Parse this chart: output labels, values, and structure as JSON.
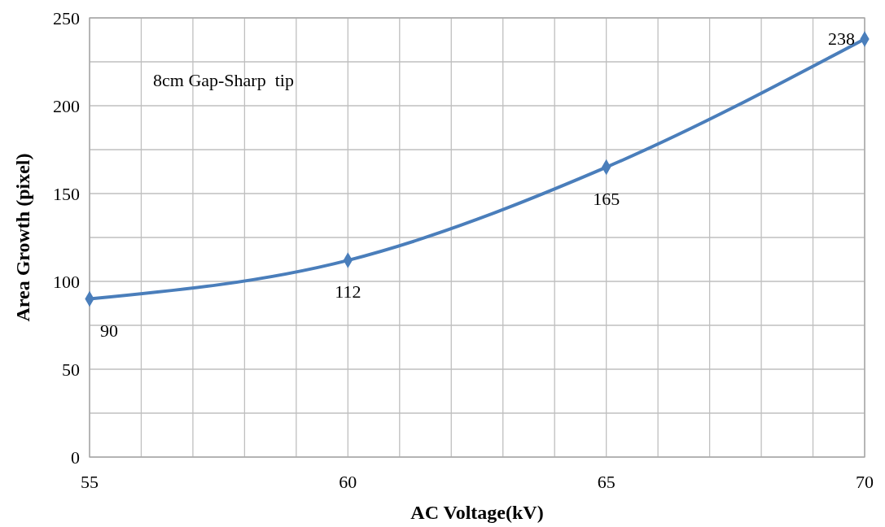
{
  "chart_data": {
    "type": "line",
    "xlabel": "AC Voltage(kV)",
    "ylabel": "Area Growth (pixel)",
    "annotations": [
      "8cm Gap-Sharp  tip"
    ],
    "x": [
      55,
      60,
      65,
      70
    ],
    "series": [
      {
        "color": "#4a7ebb",
        "values": [
          90,
          112,
          165,
          238
        ]
      }
    ],
    "xlim": [
      55,
      70
    ],
    "xticks": [
      55,
      {
        "value": 56,
        "label": null
      },
      {
        "value": 57,
        "label": null
      },
      {
        "value": 58,
        "label": null
      },
      {
        "value": 59,
        "label": null
      },
      60,
      {
        "value": 61,
        "label": null
      },
      {
        "value": 62,
        "label": null
      },
      {
        "value": 63,
        "label": null
      },
      {
        "value": 64,
        "label": null
      },
      65,
      {
        "value": 66,
        "label": null
      },
      {
        "value": 67,
        "label": null
      },
      {
        "value": 68,
        "label": null
      },
      {
        "value": 69,
        "label": null
      },
      70
    ],
    "ylim": [
      0,
      250
    ],
    "yticks": [
      0,
      {
        "value": 25,
        "label": null
      },
      50,
      {
        "value": 75,
        "label": null
      },
      100,
      {
        "value": 125,
        "label": null
      },
      150,
      {
        "value": 175,
        "label": null
      },
      200,
      {
        "value": 225,
        "label": null
      },
      250
    ],
    "grid": true,
    "marker": "diamond",
    "line_style": "solid",
    "data_labels": true
  }
}
